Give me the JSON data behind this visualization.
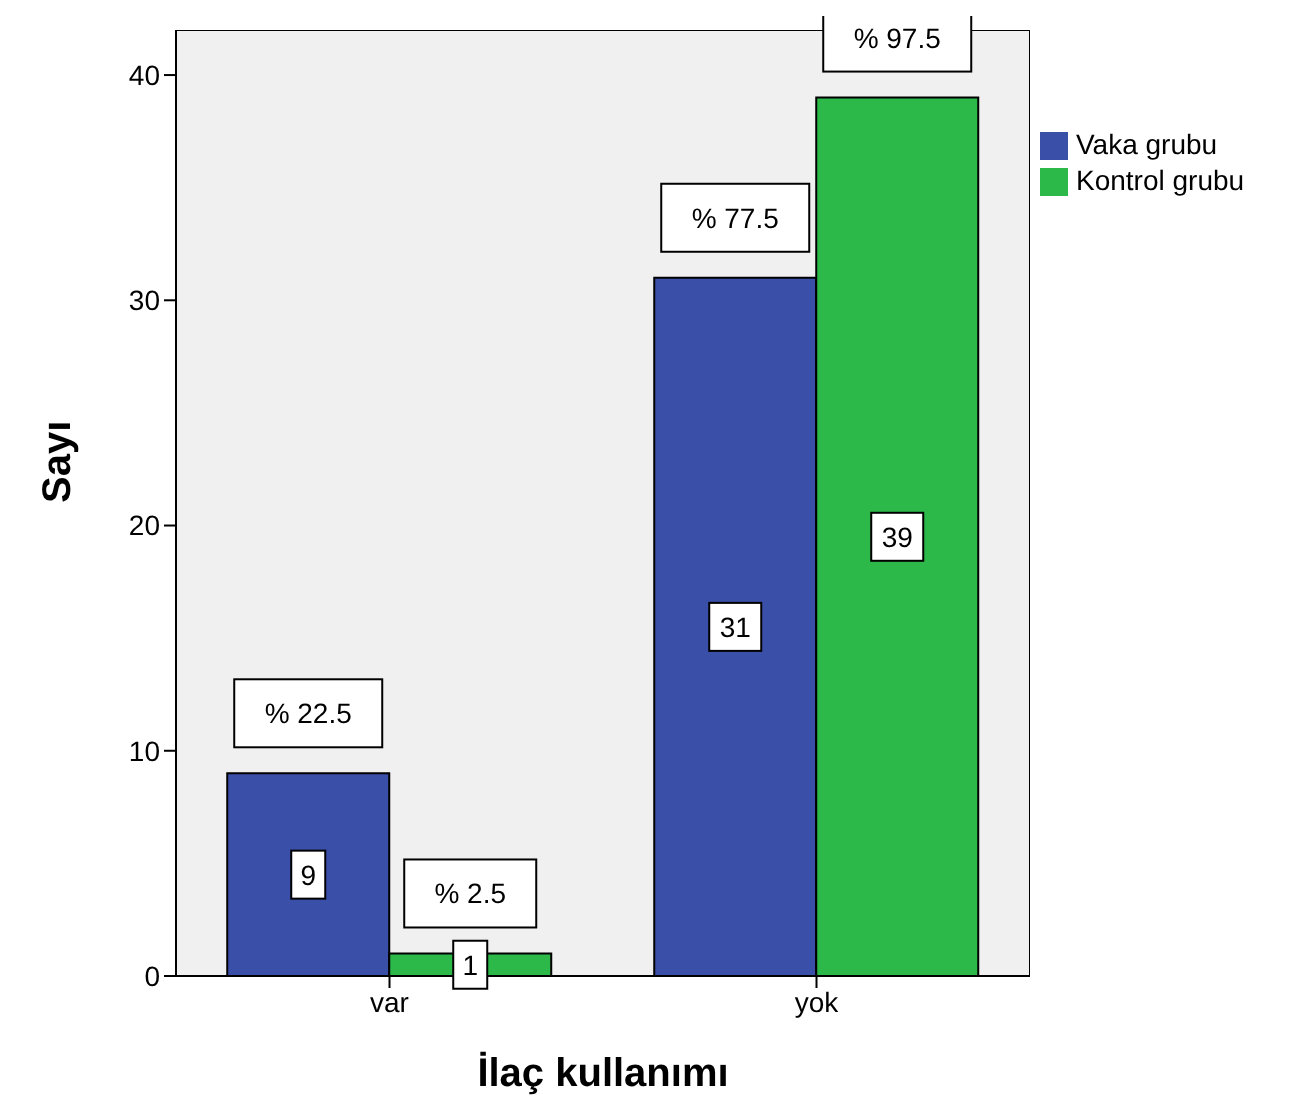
{
  "chart_data": {
    "type": "bar",
    "xlabel": "İlaç kullanımı",
    "ylabel": "Sayı",
    "categories": [
      "var",
      "yok"
    ],
    "series": [
      {
        "name": "Vaka grubu",
        "color": "#3a4fa8",
        "values": [
          9,
          31
        ]
      },
      {
        "name": "Kontrol grubu",
        "color": "#2db84a",
        "values": [
          1,
          39
        ]
      }
    ],
    "annotations": [
      {
        "text": "% 22.5",
        "x": "var",
        "y": 9
      },
      {
        "text": "% 2.5",
        "x": "var",
        "y": 1
      },
      {
        "text": "% 77.5",
        "x": "yok",
        "y": 31
      },
      {
        "text": "% 97.5",
        "x": "yok",
        "y": 39
      }
    ],
    "ylim": [
      0,
      42
    ],
    "yticks": [
      0,
      10,
      20,
      30,
      40
    ],
    "legend": "top right",
    "data_labels": true
  }
}
